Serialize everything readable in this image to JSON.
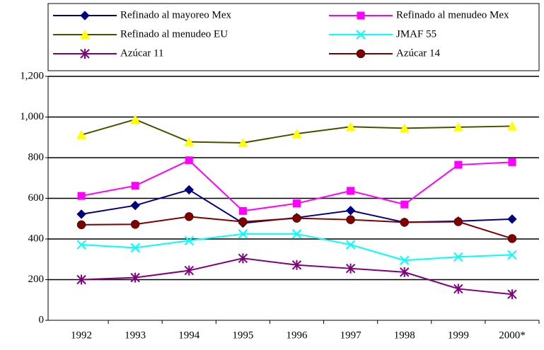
{
  "chart_data": {
    "type": "line",
    "categories": [
      "1992",
      "1993",
      "1994",
      "1995",
      "1996",
      "1997",
      "1998",
      "1999",
      "2000*"
    ],
    "series": [
      {
        "name": "Refinado al mayoreo Mex",
        "color": "#000080",
        "marker_color": "#000080",
        "marker": "diamond",
        "values": [
          522,
          565,
          642,
          478,
          505,
          540,
          482,
          488,
          498
        ]
      },
      {
        "name": "Refinado al menudeo Mex",
        "color": "#ff00ff",
        "marker_color": "#ff00ff",
        "marker": "square",
        "values": [
          612,
          662,
          787,
          538,
          575,
          637,
          570,
          765,
          778
        ]
      },
      {
        "name": "Refinado al menudeo EU",
        "color": "#4d4d00",
        "marker_color": "#ffff00",
        "marker": "triangle",
        "values": [
          912,
          988,
          878,
          873,
          918,
          952,
          945,
          950,
          955
        ]
      },
      {
        "name": "JMAF 55",
        "color": "#00ffff",
        "marker_color": "#00ffff",
        "marker": "x",
        "values": [
          372,
          357,
          392,
          425,
          425,
          372,
          295,
          312,
          322
        ]
      },
      {
        "name": "Azúcar 11",
        "color": "#800080",
        "marker_color": "#800080",
        "marker": "star",
        "values": [
          200,
          210,
          245,
          305,
          272,
          255,
          237,
          155,
          128
        ]
      },
      {
        "name": "Azúcar 14",
        "color": "#800000",
        "marker_color": "#800000",
        "marker": "circle",
        "values": [
          470,
          472,
          510,
          485,
          502,
          495,
          482,
          485,
          402
        ]
      }
    ],
    "ylim": [
      0,
      1200
    ],
    "yticks": [
      0,
      200,
      400,
      600,
      800,
      {
        "value": 1000,
        "label": "1,000"
      },
      {
        "value": 1200,
        "label": "1,200"
      }
    ],
    "grid": true,
    "legend": "top"
  }
}
